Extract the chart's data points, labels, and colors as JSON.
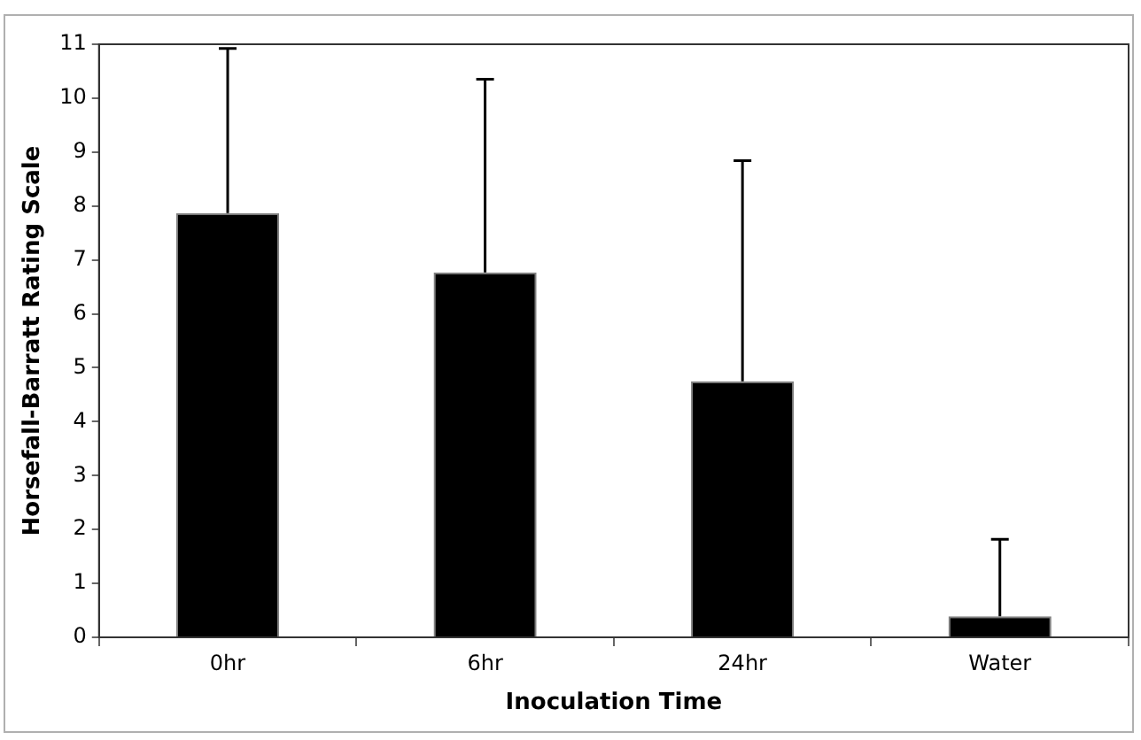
{
  "chart_data": {
    "type": "bar",
    "xlabel": "Inoculation Time",
    "ylabel": "Horsefall-Barratt Rating Scale",
    "categories": [
      "0hr",
      "6hr",
      "24hr",
      "Water"
    ],
    "values": [
      7.87,
      6.77,
      4.75,
      0.39
    ],
    "errors": [
      [
        7.87,
        10.92
      ],
      [
        6.77,
        10.35
      ],
      [
        4.75,
        8.84
      ],
      [
        0.39,
        1.82
      ]
    ],
    "color": "#000000",
    "ylim": [
      0,
      11
    ],
    "yticks": [
      0,
      1,
      2,
      3,
      4,
      5,
      6,
      7,
      8,
      9,
      10,
      11
    ],
    "grid": false,
    "legend": false
  }
}
